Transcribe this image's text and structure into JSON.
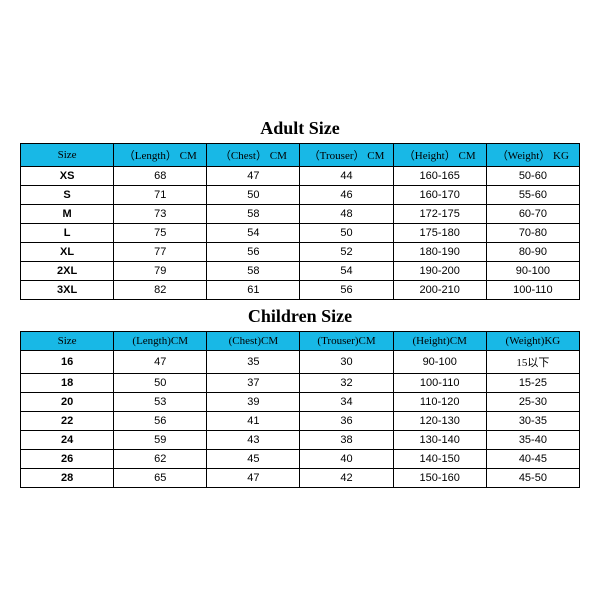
{
  "styles": {
    "header_bg": "#18b8e6",
    "border_color": "#000000",
    "title_fontsize_pt": 18,
    "cell_fontsize_pt": 11,
    "header_font": "Times New Roman",
    "body_font": "Arial"
  },
  "adult": {
    "title": "Adult Size",
    "columns": [
      "Size",
      "（Length） CM",
      "（Chest） CM",
      "（Trouser） CM",
      "（Height） CM",
      "（Weight） KG"
    ],
    "rows": [
      [
        "XS",
        "68",
        "47",
        "44",
        "160-165",
        "50-60"
      ],
      [
        "S",
        "71",
        "50",
        "46",
        "160-170",
        "55-60"
      ],
      [
        "M",
        "73",
        "58",
        "48",
        "172-175",
        "60-70"
      ],
      [
        "L",
        "75",
        "54",
        "50",
        "175-180",
        "70-80"
      ],
      [
        "XL",
        "77",
        "56",
        "52",
        "180-190",
        "80-90"
      ],
      [
        "2XL",
        "79",
        "58",
        "54",
        "190-200",
        "90-100"
      ],
      [
        "3XL",
        "82",
        "61",
        "56",
        "200-210",
        "100-110"
      ]
    ]
  },
  "children": {
    "title": "Children Size",
    "columns": [
      "Size",
      "(Length)CM",
      "(Chest)CM",
      "(Trouser)CM",
      "(Height)CM",
      "(Weight)KG"
    ],
    "rows": [
      [
        "16",
        "47",
        "35",
        "30",
        "90-100",
        "15以下"
      ],
      [
        "18",
        "50",
        "37",
        "32",
        "100-110",
        "15-25"
      ],
      [
        "20",
        "53",
        "39",
        "34",
        "110-120",
        "25-30"
      ],
      [
        "22",
        "56",
        "41",
        "36",
        "120-130",
        "30-35"
      ],
      [
        "24",
        "59",
        "43",
        "38",
        "130-140",
        "35-40"
      ],
      [
        "26",
        "62",
        "45",
        "40",
        "140-150",
        "40-45"
      ],
      [
        "28",
        "65",
        "47",
        "42",
        "150-160",
        "45-50"
      ]
    ]
  }
}
